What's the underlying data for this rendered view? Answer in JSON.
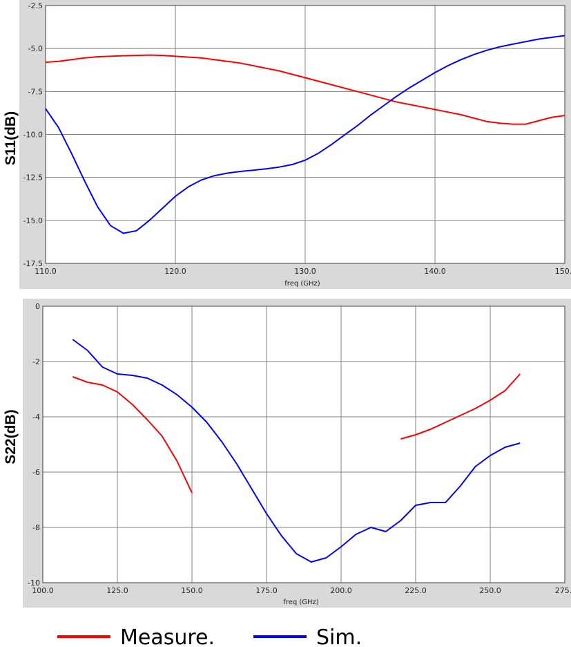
{
  "chart_data": [
    {
      "type": "line",
      "xlabel": "freq (GHz)",
      "ylabel": "S11(dB)",
      "xlim": [
        110,
        150
      ],
      "ylim": [
        -17.5,
        -2.5
      ],
      "xticks": [
        "110.0",
        "120.0",
        "130.0",
        "140.0",
        "150."
      ],
      "yticks": [
        "-2.5",
        "-5.0",
        "-7.5",
        "-10.0",
        "-12.5",
        "-15.0",
        "-17.5"
      ],
      "xtick_values": [
        110,
        120,
        130,
        140,
        150
      ],
      "ytick_values": [
        -2.5,
        -5,
        -7.5,
        -10,
        -12.5,
        -15,
        -17.5
      ],
      "grid": true,
      "series": [
        {
          "name": "Measure.",
          "color": "#ff0000",
          "segments": [
            [
              [
                110,
                -5.8
              ],
              [
                111,
                -5.75
              ],
              [
                112,
                -5.65
              ],
              [
                113,
                -5.55
              ],
              [
                114,
                -5.48
              ],
              [
                115,
                -5.45
              ],
              [
                116,
                -5.42
              ],
              [
                117,
                -5.4
              ],
              [
                118,
                -5.38
              ],
              [
                119,
                -5.4
              ],
              [
                120,
                -5.45
              ],
              [
                121,
                -5.5
              ],
              [
                122,
                -5.55
              ],
              [
                123,
                -5.65
              ],
              [
                124,
                -5.75
              ],
              [
                125,
                -5.85
              ],
              [
                126,
                -6.0
              ],
              [
                127,
                -6.15
              ],
              [
                128,
                -6.3
              ],
              [
                129,
                -6.5
              ],
              [
                130,
                -6.7
              ],
              [
                131,
                -6.9
              ],
              [
                132,
                -7.1
              ],
              [
                133,
                -7.3
              ],
              [
                134,
                -7.5
              ],
              [
                135,
                -7.7
              ],
              [
                136,
                -7.9
              ],
              [
                137,
                -8.1
              ],
              [
                138,
                -8.25
              ],
              [
                139,
                -8.4
              ],
              [
                140,
                -8.55
              ],
              [
                141,
                -8.7
              ],
              [
                142,
                -8.85
              ],
              [
                143,
                -9.05
              ],
              [
                144,
                -9.25
              ],
              [
                145,
                -9.35
              ],
              [
                146,
                -9.4
              ],
              [
                147,
                -9.4
              ],
              [
                148,
                -9.2
              ],
              [
                149,
                -9.0
              ],
              [
                150,
                -8.9
              ]
            ]
          ]
        },
        {
          "name": "Sim.",
          "color": "#0000ff",
          "segments": [
            [
              [
                110,
                -8.5
              ],
              [
                111,
                -9.6
              ],
              [
                112,
                -11.1
              ],
              [
                113,
                -12.7
              ],
              [
                114,
                -14.2
              ],
              [
                115,
                -15.3
              ],
              [
                116,
                -15.75
              ],
              [
                117,
                -15.6
              ],
              [
                118,
                -15.0
              ],
              [
                119,
                -14.3
              ],
              [
                120,
                -13.6
              ],
              [
                121,
                -13.05
              ],
              [
                122,
                -12.65
              ],
              [
                123,
                -12.4
              ],
              [
                124,
                -12.25
              ],
              [
                125,
                -12.15
              ],
              [
                126,
                -12.08
              ],
              [
                127,
                -12.0
              ],
              [
                128,
                -11.9
              ],
              [
                129,
                -11.75
              ],
              [
                130,
                -11.5
              ],
              [
                131,
                -11.1
              ],
              [
                132,
                -10.6
              ],
              [
                133,
                -10.05
              ],
              [
                134,
                -9.5
              ],
              [
                135,
                -8.9
              ],
              [
                136,
                -8.35
              ],
              [
                137,
                -7.8
              ],
              [
                138,
                -7.3
              ],
              [
                139,
                -6.85
              ],
              [
                140,
                -6.4
              ],
              [
                141,
                -6.0
              ],
              [
                142,
                -5.65
              ],
              [
                143,
                -5.35
              ],
              [
                144,
                -5.1
              ],
              [
                145,
                -4.9
              ],
              [
                146,
                -4.75
              ],
              [
                147,
                -4.6
              ],
              [
                148,
                -4.45
              ],
              [
                149,
                -4.35
              ],
              [
                150,
                -4.25
              ]
            ]
          ]
        }
      ]
    },
    {
      "type": "line",
      "xlabel": "freq (GHz)",
      "ylabel": "S22(dB)",
      "xlim": [
        100,
        275
      ],
      "ylim": [
        -10,
        0
      ],
      "xticks": [
        "100.0",
        "125.0",
        "150.0",
        "175.0",
        "200.0",
        "225.0",
        "250.0",
        "275."
      ],
      "yticks": [
        "0",
        "-2",
        "-4",
        "-6",
        "-8",
        "-10"
      ],
      "xtick_values": [
        100,
        125,
        150,
        175,
        200,
        225,
        250,
        275
      ],
      "ytick_values": [
        0,
        -2,
        -4,
        -6,
        -8,
        -10
      ],
      "grid": true,
      "series": [
        {
          "name": "Measure.",
          "color": "#ff0000",
          "segments": [
            [
              [
                110,
                -2.55
              ],
              [
                115,
                -2.75
              ],
              [
                120,
                -2.85
              ],
              [
                125,
                -3.1
              ],
              [
                130,
                -3.55
              ],
              [
                135,
                -4.1
              ],
              [
                140,
                -4.7
              ],
              [
                145,
                -5.6
              ],
              [
                150,
                -6.75
              ]
            ],
            [
              [
                220,
                -4.8
              ],
              [
                225,
                -4.65
              ],
              [
                230,
                -4.45
              ],
              [
                235,
                -4.2
              ],
              [
                240,
                -3.95
              ],
              [
                245,
                -3.7
              ],
              [
                250,
                -3.4
              ],
              [
                255,
                -3.05
              ],
              [
                260,
                -2.45
              ]
            ]
          ]
        },
        {
          "name": "Sim.",
          "color": "#0000ff",
          "segments": [
            [
              [
                110,
                -1.2
              ],
              [
                115,
                -1.6
              ],
              [
                120,
                -2.2
              ],
              [
                125,
                -2.45
              ],
              [
                130,
                -2.5
              ],
              [
                135,
                -2.6
              ],
              [
                140,
                -2.85
              ],
              [
                145,
                -3.2
              ],
              [
                150,
                -3.65
              ],
              [
                155,
                -4.2
              ],
              [
                160,
                -4.9
              ],
              [
                165,
                -5.7
              ],
              [
                170,
                -6.6
              ],
              [
                175,
                -7.5
              ],
              [
                180,
                -8.3
              ],
              [
                185,
                -8.95
              ],
              [
                190,
                -9.25
              ],
              [
                195,
                -9.1
              ],
              [
                200,
                -8.7
              ],
              [
                205,
                -8.25
              ],
              [
                210,
                -8.0
              ],
              [
                215,
                -8.15
              ],
              [
                220,
                -7.75
              ],
              [
                225,
                -7.2
              ],
              [
                230,
                -7.1
              ],
              [
                235,
                -7.1
              ],
              [
                240,
                -6.5
              ],
              [
                245,
                -5.8
              ],
              [
                250,
                -5.4
              ],
              [
                255,
                -5.1
              ],
              [
                260,
                -4.95
              ]
            ]
          ]
        }
      ]
    }
  ],
  "legend": {
    "position": "bottom",
    "items": [
      {
        "label": "Measure.",
        "color": "#ff0000"
      },
      {
        "label": "Sim.",
        "color": "#0000ff"
      }
    ]
  }
}
